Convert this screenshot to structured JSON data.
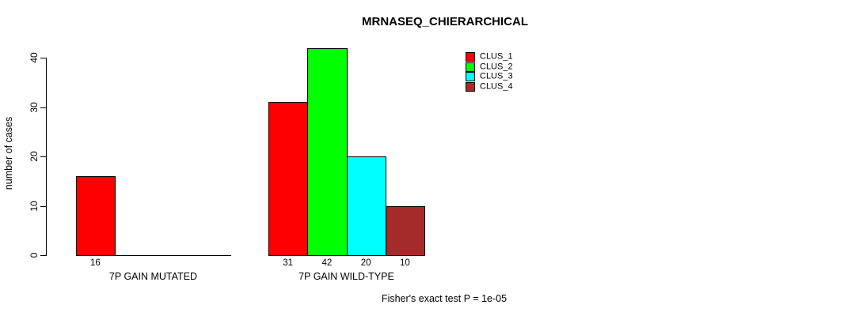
{
  "chart_data": {
    "type": "bar",
    "title": "MRNASEQ_CHIERARCHICAL",
    "ylabel": "number of cases",
    "xlabel": "",
    "ylim": [
      0,
      40
    ],
    "yticks": [
      0,
      10,
      20,
      30,
      40
    ],
    "grid": false,
    "background": "#ffffff",
    "legend_position": "top-right",
    "slots_per_group": 4,
    "legend": [
      {
        "label": "CLUS_1",
        "color": "#ff0000"
      },
      {
        "label": "CLUS_2",
        "color": "#00ff00"
      },
      {
        "label": "CLUS_3",
        "color": "#00ffff"
      },
      {
        "label": "CLUS_4",
        "color": "#a52a2a"
      }
    ],
    "groups": [
      {
        "label": "7P GAIN MUTATED",
        "bars": [
          {
            "cluster": "CLUS_1",
            "slot": 0,
            "value": 16,
            "value_label": "16",
            "color": "#ff0000"
          }
        ]
      },
      {
        "label": "7P GAIN WILD-TYPE",
        "bars": [
          {
            "cluster": "CLUS_1",
            "slot": 0,
            "value": 31,
            "value_label": "31",
            "color": "#ff0000"
          },
          {
            "cluster": "CLUS_2",
            "slot": 1,
            "value": 42,
            "value_label": "42",
            "color": "#00ff00"
          },
          {
            "cluster": "CLUS_3",
            "slot": 2,
            "value": 20,
            "value_label": "20",
            "color": "#00ffff"
          },
          {
            "cluster": "CLUS_4",
            "slot": 3,
            "value": 10,
            "value_label": "10",
            "color": "#a52a2a"
          }
        ]
      }
    ],
    "annotation": "Fisher's exact test P = 1e-05"
  }
}
